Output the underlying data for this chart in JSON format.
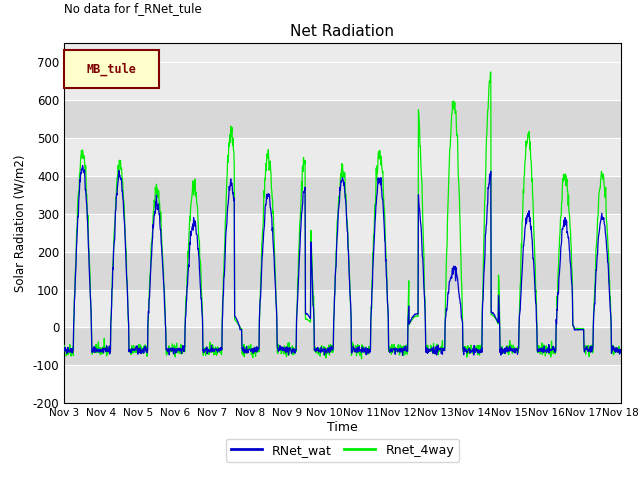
{
  "title": "Net Radiation",
  "top_left_text": "No data for f_RNet_tule",
  "xlabel": "Time",
  "ylabel": "Solar Radiation (W/m2)",
  "ylim": [
    -200,
    750
  ],
  "yticks": [
    -200,
    -100,
    0,
    100,
    200,
    300,
    400,
    500,
    600,
    700
  ],
  "x_tick_labels": [
    "Nov 3",
    "Nov 4",
    "Nov 5",
    "Nov 6",
    "Nov 7",
    "Nov 8",
    "Nov 9",
    "Nov 10",
    "Nov 11",
    "Nov 12",
    "Nov 13",
    "Nov 14",
    "Nov 15",
    "Nov 16",
    "Nov 17",
    "Nov 18"
  ],
  "line1_color": "#0000cc",
  "line2_color": "#00ee00",
  "line1_label": "RNet_wat",
  "line2_label": "Rnet_4way",
  "legend_box_facecolor": "#ffffcc",
  "legend_box_edgecolor": "#800000",
  "legend_label": "MB_tule",
  "legend_text_color": "#800000",
  "background_color": "#ffffff",
  "plot_bg_light": "#ebebeb",
  "plot_bg_dark": "#d8d8d8",
  "grid_color": "#ffffff",
  "night_value": -60,
  "day_peak_wat": [
    425,
    400,
    325,
    280,
    380,
    350,
    370,
    390,
    390,
    360,
    155,
    400,
    300,
    280,
    295,
    80,
    155,
    295
  ],
  "day_peak_4way": [
    465,
    435,
    365,
    375,
    510,
    455,
    450,
    415,
    455,
    600,
    600,
    670,
    510,
    405,
    410,
    130,
    300,
    360
  ]
}
